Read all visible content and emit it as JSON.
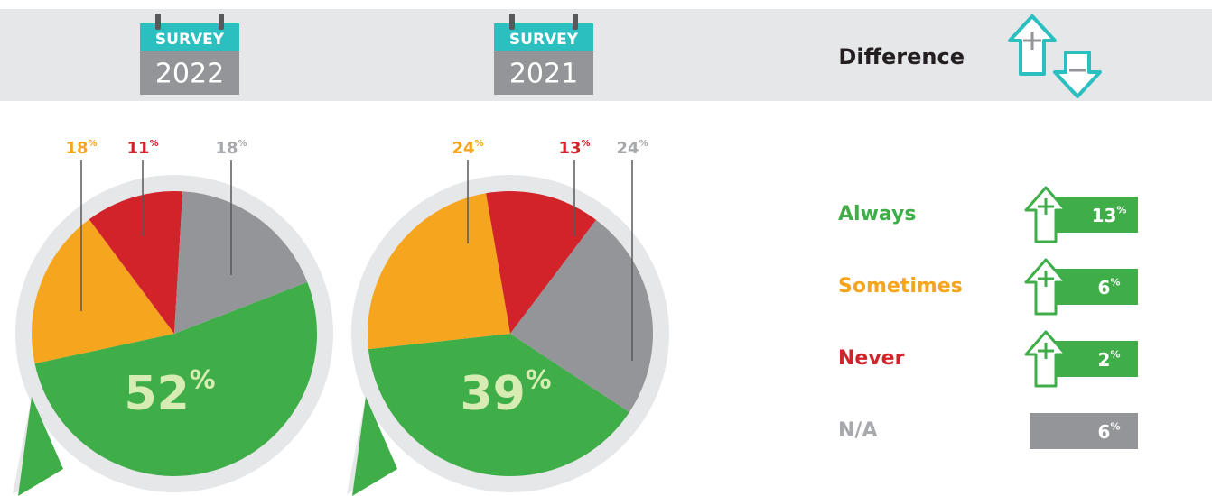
{
  "header": {
    "surveys": [
      {
        "label": "SURVEY",
        "year": "2022"
      },
      {
        "label": "SURVEY",
        "year": "2021"
      }
    ],
    "difference": "Difference"
  },
  "chart_data": [
    {
      "type": "pie",
      "values": [
        52,
        18,
        11,
        18
      ],
      "value_labels": [
        "52%",
        "18%",
        "11%",
        "18%"
      ],
      "colors": [
        "#3fae49",
        "#f6a51e",
        "#d2232a",
        "#939598"
      ]
    },
    {
      "type": "pie",
      "values": [
        39,
        24,
        13,
        24
      ],
      "value_labels": [
        "39%",
        "24%",
        "13%",
        "24%"
      ],
      "colors": [
        "#3fae49",
        "#f6a51e",
        "#d2232a",
        "#939598"
      ]
    }
  ],
  "difference": {
    "categories": [
      "Always",
      "Sometimes",
      "Never",
      "N/A"
    ],
    "values": [
      13,
      6,
      2,
      6
    ],
    "value_labels": [
      "13%",
      "6%",
      "2%",
      "6%"
    ],
    "colors": [
      "#3fae49",
      "#f6a51e",
      "#d2232a",
      "#a7a9ac"
    ]
  }
}
